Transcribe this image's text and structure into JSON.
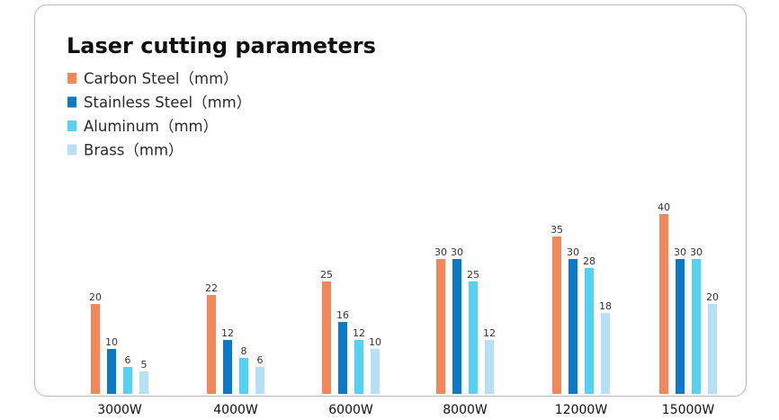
{
  "chart_data": {
    "type": "bar",
    "title": "Laser cutting parameters",
    "categories": [
      "3000W",
      "4000W",
      "6000W",
      "8000W",
      "12000W",
      "15000W"
    ],
    "series": [
      {
        "name": "Carbon Steel（mm）",
        "color": "#f4875a",
        "values": [
          20,
          22,
          25,
          30,
          35,
          40
        ]
      },
      {
        "name": "Stainless Steel（mm）",
        "color": "#0b78c8",
        "values": [
          10,
          12,
          16,
          30,
          30,
          30
        ]
      },
      {
        "name": "Aluminum（mm）",
        "color": "#55d2f2",
        "values": [
          6,
          8,
          12,
          25,
          28,
          30
        ]
      },
      {
        "name": "Brass（mm）",
        "color": "#b6e0f6",
        "values": [
          5,
          6,
          10,
          12,
          18,
          20
        ]
      }
    ],
    "xlabel": "",
    "ylabel": "",
    "ylim": [
      0,
      40
    ],
    "grid": false,
    "legend_position": "top-left"
  }
}
